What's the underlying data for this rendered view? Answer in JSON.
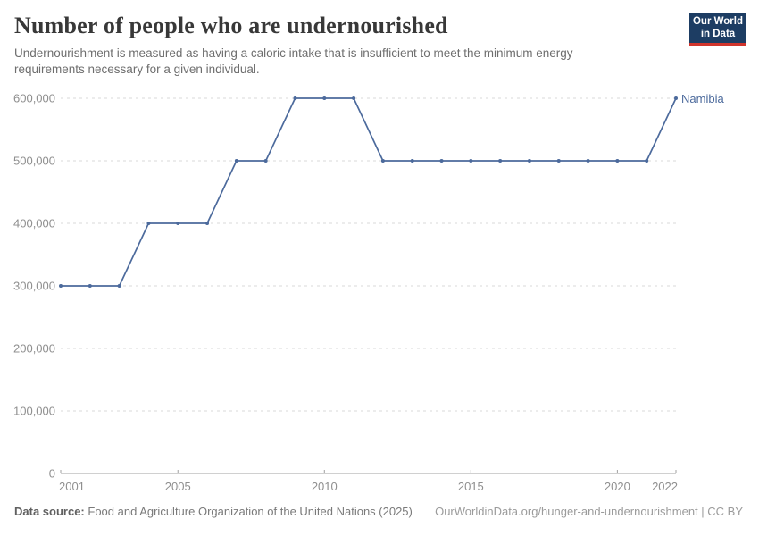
{
  "header": {
    "title": "Number of people who are undernourished",
    "subtitle": "Undernourishment is measured as having a caloric intake that is insufficient to meet the minimum energy requirements necessary for a given individual.",
    "logo": {
      "line1": "Our World",
      "line2": "in Data",
      "bg_color": "#1d3d63",
      "stripe_color": "#d0342c"
    }
  },
  "chart_data": {
    "type": "line",
    "title": "Number of people who are undernourished",
    "xlabel": "",
    "ylabel": "",
    "x": [
      2001,
      2002,
      2003,
      2004,
      2005,
      2006,
      2007,
      2008,
      2009,
      2010,
      2011,
      2012,
      2013,
      2014,
      2015,
      2016,
      2017,
      2018,
      2019,
      2020,
      2021,
      2022
    ],
    "series": [
      {
        "name": "Namibia",
        "color": "#4c6a9c",
        "values": [
          300000,
          300000,
          300000,
          400000,
          400000,
          400000,
          500000,
          500000,
          600000,
          600000,
          600000,
          500000,
          500000,
          500000,
          500000,
          500000,
          500000,
          500000,
          500000,
          500000,
          500000,
          600000
        ]
      }
    ],
    "xlim": [
      2001,
      2022
    ],
    "ylim": [
      0,
      600000
    ],
    "xticks": [
      2001,
      2005,
      2010,
      2015,
      2020,
      2022
    ],
    "yticks": [
      0,
      100000,
      200000,
      300000,
      400000,
      500000,
      600000
    ],
    "ytick_labels": [
      "0",
      "100,000",
      "200,000",
      "300,000",
      "400,000",
      "500,000",
      "600,000"
    ],
    "grid": "horizontal-dashed",
    "legend_position": "line-end-label",
    "entity_label": "Namibia"
  },
  "colors": {
    "line": "#4c6a9c",
    "gridline": "#dadada",
    "axis": "#a0a0a0",
    "tick_label": "#8f8f8f",
    "title": "#383838",
    "subtitle": "#6e6e6e"
  },
  "footer": {
    "datasource_label": "Data source:",
    "datasource_value": "Food and Agriculture Organization of the United Nations (2025)",
    "link": "OurWorldinData.org/hunger-and-undernourishment | CC BY"
  }
}
